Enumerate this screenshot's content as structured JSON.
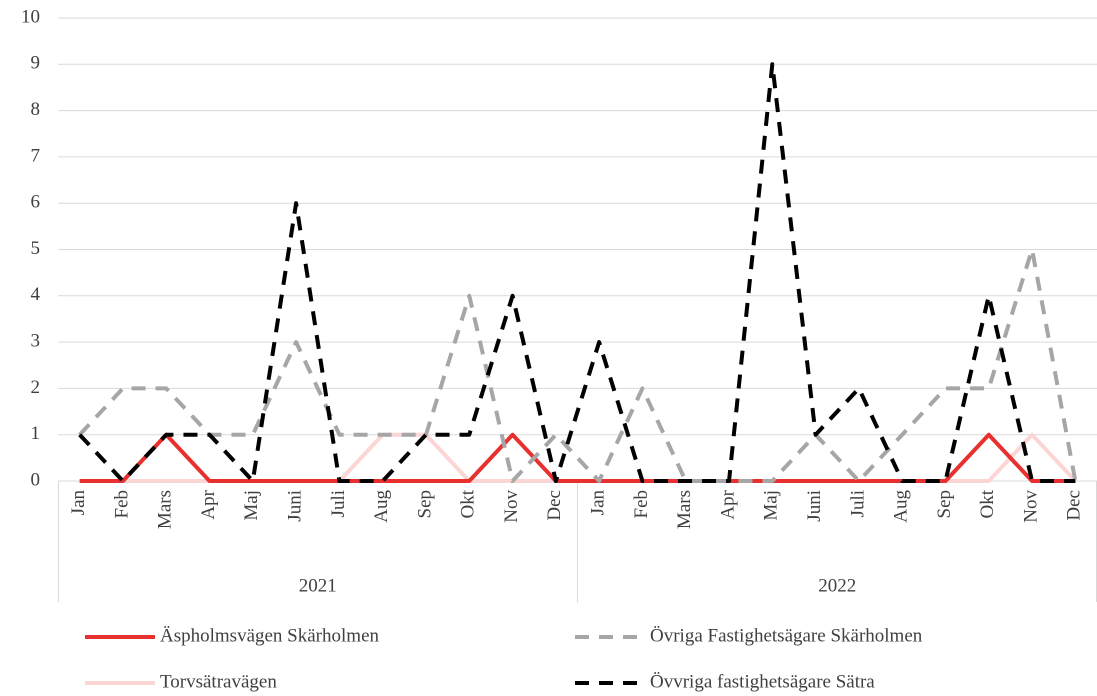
{
  "chart_data": {
    "type": "line",
    "categories": [
      "Jan",
      "Feb",
      "Mars",
      "Apr",
      "Maj",
      "Juni",
      "Juli",
      "Aug",
      "Sep",
      "Okt",
      "Nov",
      "Dec",
      "Jan",
      "Feb",
      "Mars",
      "Apr",
      "Maj",
      "Juni",
      "Juli",
      "Aug",
      "Sep",
      "Okt",
      "Nov",
      "Dec"
    ],
    "x_groups": [
      "2021",
      "2022"
    ],
    "series": [
      {
        "name": "Äspholmsvägen Skärholmen",
        "color": "#e8302f",
        "dashed": false,
        "values": [
          0,
          0,
          1,
          0,
          0,
          0,
          0,
          0,
          0,
          0,
          1,
          0,
          0,
          0,
          0,
          0,
          0,
          0,
          0,
          0,
          0,
          1,
          0,
          0
        ]
      },
      {
        "name": "Övriga Fastighetsägare Skärholmen",
        "color": "#a6a6a6",
        "dashed": true,
        "values": [
          1,
          2,
          2,
          1,
          1,
          3,
          1,
          1,
          1,
          4,
          0,
          1,
          0,
          2,
          0,
          0,
          0,
          1,
          0,
          1,
          2,
          2,
          5,
          0
        ]
      },
      {
        "name": "Torvsätravägen",
        "color": "#fcd5d5",
        "dashed": false,
        "values": [
          0,
          0,
          0,
          0,
          0,
          0,
          0,
          1,
          1,
          0,
          0,
          0,
          0,
          0,
          0,
          0,
          0,
          0,
          0,
          0,
          0,
          0,
          1,
          0
        ]
      },
      {
        "name": "Övvriga fastighetsägare Sätra",
        "color": "#000000",
        "dashed": true,
        "values": [
          1,
          0,
          1,
          1,
          0,
          6,
          0,
          0,
          1,
          1,
          4,
          0,
          3,
          0,
          0,
          0,
          9,
          1,
          2,
          0,
          0,
          4,
          0,
          0
        ]
      }
    ],
    "ylim": [
      0,
      10
    ],
    "yticks": [
      0,
      1,
      2,
      3,
      4,
      5,
      6,
      7,
      8,
      9,
      10
    ],
    "grid": true,
    "legend": "bottom"
  }
}
